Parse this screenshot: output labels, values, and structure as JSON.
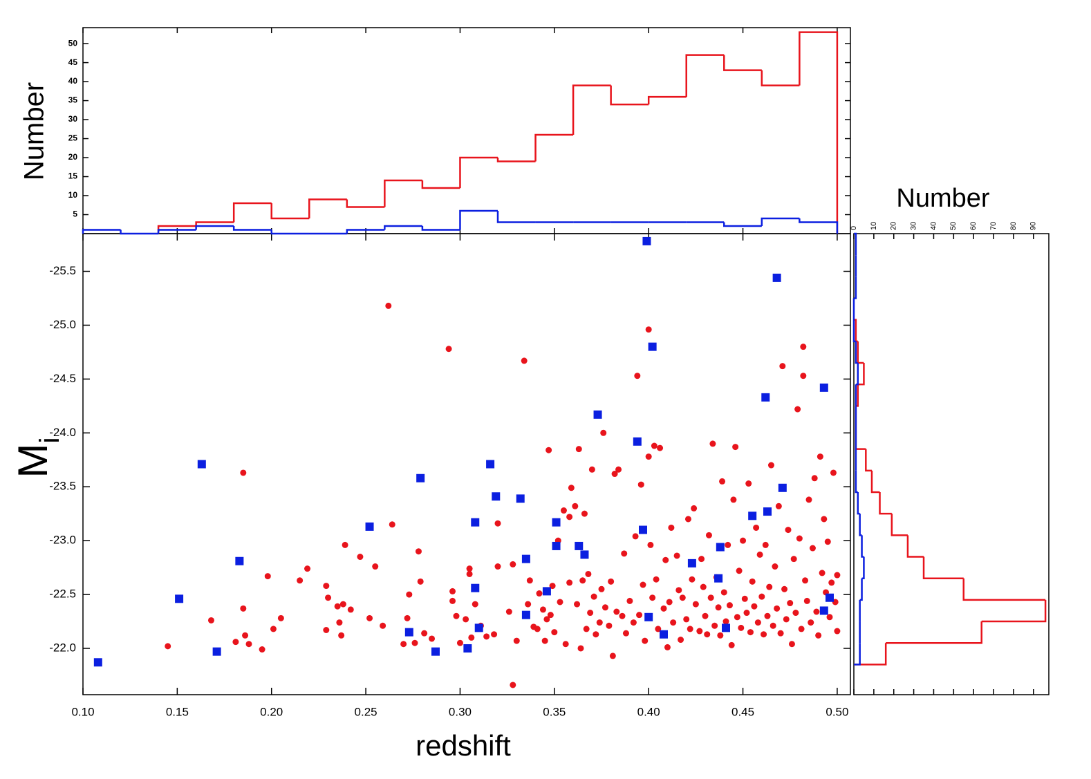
{
  "chart_data": [
    {
      "type": "scatter",
      "x_label": "redshift",
      "y_label": {
        "main": "M",
        "subscript": "i"
      },
      "xlim": [
        0.1,
        0.507
      ],
      "ylim": [
        -21.57,
        -25.85
      ],
      "xticks": [
        {
          "value": 0.1,
          "label": "0.10"
        },
        0.15,
        {
          "value": 0.2,
          "label": "0.20"
        },
        0.25,
        {
          "value": 0.3,
          "label": "0.30"
        },
        0.35,
        {
          "value": 0.4,
          "label": "0.40"
        },
        0.45,
        {
          "value": 0.5,
          "label": "0.50"
        }
      ],
      "yticks": [
        -25.5,
        {
          "value": -25,
          "label": "-25.0"
        },
        -24.5,
        {
          "value": -24,
          "label": "-24.0"
        },
        -23.5,
        {
          "value": -23,
          "label": "-23.0"
        },
        -22.5,
        {
          "value": -22,
          "label": "-22.0"
        }
      ],
      "series": [
        {
          "color": "#e8141c",
          "marker": "circle",
          "x": [
            0.145,
            0.168,
            0.185,
            0.181,
            0.185,
            0.186,
            0.188,
            0.195,
            0.198,
            0.201,
            0.205,
            0.215,
            0.219,
            0.229,
            0.23,
            0.229,
            0.235,
            0.236,
            0.237,
            0.238,
            0.239,
            0.242,
            0.247,
            0.252,
            0.255,
            0.259,
            0.262,
            0.264,
            0.27,
            0.272,
            0.273,
            0.276,
            0.278,
            0.279,
            0.281,
            0.285,
            0.294,
            0.296,
            0.296,
            0.298,
            0.3,
            0.303,
            0.305,
            0.305,
            0.306,
            0.308,
            0.311,
            0.314,
            0.318,
            0.32,
            0.32,
            0.326,
            0.328,
            0.328,
            0.33,
            0.334,
            0.336,
            0.337,
            0.339,
            0.341,
            0.342,
            0.344,
            0.345,
            0.346,
            0.347,
            0.348,
            0.349,
            0.35,
            0.352,
            0.353,
            0.355,
            0.356,
            0.358,
            0.358,
            0.359,
            0.361,
            0.362,
            0.363,
            0.364,
            0.365,
            0.366,
            0.367,
            0.368,
            0.369,
            0.37,
            0.371,
            0.372,
            0.374,
            0.375,
            0.376,
            0.377,
            0.379,
            0.38,
            0.381,
            0.382,
            0.383,
            0.384,
            0.386,
            0.387,
            0.388,
            0.39,
            0.392,
            0.393,
            0.394,
            0.395,
            0.396,
            0.397,
            0.398,
            0.4,
            0.4,
            0.401,
            0.402,
            0.403,
            0.404,
            0.405,
            0.406,
            0.408,
            0.409,
            0.41,
            0.411,
            0.412,
            0.413,
            0.415,
            0.416,
            0.417,
            0.418,
            0.42,
            0.421,
            0.422,
            0.423,
            0.424,
            0.425,
            0.427,
            0.428,
            0.429,
            0.43,
            0.431,
            0.432,
            0.433,
            0.434,
            0.435,
            0.436,
            0.437,
            0.438,
            0.439,
            0.44,
            0.441,
            0.442,
            0.443,
            0.444,
            0.445,
            0.446,
            0.447,
            0.448,
            0.449,
            0.45,
            0.451,
            0.452,
            0.453,
            0.454,
            0.455,
            0.456,
            0.457,
            0.458,
            0.459,
            0.46,
            0.461,
            0.462,
            0.463,
            0.464,
            0.465,
            0.466,
            0.467,
            0.468,
            0.469,
            0.47,
            0.471,
            0.472,
            0.473,
            0.474,
            0.475,
            0.476,
            0.477,
            0.478,
            0.479,
            0.48,
            0.481,
            0.482,
            0.482,
            0.483,
            0.484,
            0.485,
            0.486,
            0.487,
            0.488,
            0.489,
            0.49,
            0.491,
            0.492,
            0.493,
            0.494,
            0.495,
            0.496,
            0.497,
            0.498,
            0.499,
            0.5,
            0.5
          ],
          "y": [
            -22.02,
            -22.26,
            -23.63,
            -22.06,
            -22.37,
            -22.12,
            -22.04,
            -21.99,
            -22.67,
            -22.18,
            -22.28,
            -22.63,
            -22.74,
            -22.58,
            -22.47,
            -22.17,
            -22.39,
            -22.24,
            -22.12,
            -22.41,
            -22.96,
            -22.36,
            -22.85,
            -22.28,
            -22.76,
            -22.21,
            -25.18,
            -23.15,
            -22.04,
            -22.28,
            -22.5,
            -22.05,
            -22.9,
            -22.62,
            -22.14,
            -22.09,
            -24.78,
            -22.53,
            -22.44,
            -22.3,
            -22.05,
            -22.27,
            -22.69,
            -22.74,
            -22.1,
            -22.41,
            -22.21,
            -22.11,
            -22.13,
            -22.76,
            -23.16,
            -22.34,
            -21.66,
            -22.78,
            -22.07,
            -24.67,
            -22.41,
            -22.63,
            -22.2,
            -22.18,
            -22.51,
            -22.36,
            -22.07,
            -22.27,
            -23.84,
            -22.31,
            -22.58,
            -22.15,
            -23.0,
            -22.43,
            -23.28,
            -22.04,
            -22.61,
            -23.22,
            -23.49,
            -23.32,
            -22.41,
            -23.85,
            -22.0,
            -22.63,
            -23.25,
            -22.18,
            -22.69,
            -22.33,
            -23.66,
            -22.48,
            -22.13,
            -22.24,
            -22.55,
            -24.0,
            -22.38,
            -22.21,
            -22.62,
            -21.93,
            -23.62,
            -22.34,
            -23.66,
            -22.3,
            -22.88,
            -22.14,
            -22.44,
            -22.24,
            -23.04,
            -24.53,
            -22.31,
            -23.52,
            -22.59,
            -22.07,
            -23.78,
            -24.96,
            -22.96,
            -22.47,
            -23.88,
            -22.64,
            -22.18,
            -23.86,
            -22.37,
            -22.82,
            -22.01,
            -22.43,
            -23.12,
            -22.24,
            -22.86,
            -22.54,
            -22.08,
            -22.47,
            -22.27,
            -23.2,
            -22.18,
            -22.64,
            -23.3,
            -22.41,
            -22.16,
            -22.83,
            -22.57,
            -22.3,
            -22.13,
            -23.05,
            -22.47,
            -23.9,
            -22.21,
            -22.66,
            -22.38,
            -22.12,
            -23.55,
            -22.52,
            -22.25,
            -22.96,
            -22.4,
            -22.03,
            -23.38,
            -23.87,
            -22.29,
            -22.72,
            -22.19,
            -23.0,
            -22.46,
            -22.33,
            -23.53,
            -22.15,
            -22.62,
            -22.39,
            -23.12,
            -22.24,
            -22.87,
            -22.48,
            -22.13,
            -22.96,
            -22.3,
            -22.57,
            -23.7,
            -22.21,
            -22.76,
            -22.37,
            -23.32,
            -22.14,
            -24.62,
            -22.55,
            -22.27,
            -23.1,
            -22.42,
            -22.04,
            -22.83,
            -22.33,
            -24.22,
            -23.02,
            -22.18,
            -24.8,
            -24.53,
            -22.63,
            -22.44,
            -23.38,
            -22.24,
            -22.93,
            -23.58,
            -22.34,
            -22.12,
            -23.78,
            -22.7,
            -23.2,
            -22.52,
            -22.99,
            -22.29,
            -22.61,
            -23.63,
            -22.43,
            -22.68,
            -22.16
          ]
        },
        {
          "color": "#0b1fe0",
          "marker": "square",
          "x": [
            0.108,
            0.151,
            0.163,
            0.171,
            0.183,
            0.252,
            0.273,
            0.279,
            0.287,
            0.304,
            0.308,
            0.308,
            0.31,
            0.316,
            0.319,
            0.332,
            0.335,
            0.335,
            0.346,
            0.351,
            0.351,
            0.363,
            0.366,
            0.373,
            0.394,
            0.397,
            0.399,
            0.4,
            0.402,
            0.408,
            0.423,
            0.437,
            0.438,
            0.441,
            0.455,
            0.462,
            0.463,
            0.468,
            0.471,
            0.493,
            0.493,
            0.496
          ],
          "y": [
            -21.87,
            -22.46,
            -23.71,
            -21.97,
            -22.81,
            -23.13,
            -22.15,
            -23.58,
            -21.97,
            -22.0,
            -22.56,
            -23.17,
            -22.19,
            -23.71,
            -23.41,
            -23.39,
            -22.31,
            -22.83,
            -22.53,
            -23.17,
            -22.95,
            -22.95,
            -22.87,
            -24.17,
            -23.92,
            -23.1,
            -25.78,
            -22.29,
            -24.8,
            -22.13,
            -22.79,
            -22.65,
            -22.94,
            -22.19,
            -23.23,
            -24.33,
            -23.27,
            -25.44,
            -23.49,
            -24.42,
            -22.35,
            -22.47
          ]
        }
      ]
    },
    {
      "type": "histogram",
      "y_label": "Number",
      "xlim": [
        0.1,
        0.507
      ],
      "ylim": [
        0,
        54.2
      ],
      "yticks": [
        5,
        10,
        15,
        20,
        25,
        30,
        35,
        40,
        45,
        50
      ],
      "series": [
        {
          "color": "#e8141c",
          "bins": [
            0.14,
            0.16,
            0.18,
            0.2,
            0.22,
            0.24,
            0.26,
            0.28,
            0.3,
            0.32,
            0.34,
            0.36,
            0.38,
            0.4,
            0.42,
            0.44,
            0.46,
            0.48,
            0.5
          ],
          "values": [
            2,
            3,
            8,
            4,
            9,
            7,
            14,
            12,
            20,
            19,
            26,
            39,
            34,
            36,
            47,
            43,
            39,
            53
          ]
        },
        {
          "color": "#0b1fe0",
          "bins": [
            0.1,
            0.12,
            0.14,
            0.16,
            0.18,
            0.2,
            0.22,
            0.24,
            0.26,
            0.28,
            0.3,
            0.32,
            0.34,
            0.36,
            0.38,
            0.4,
            0.42,
            0.44,
            0.46,
            0.48,
            0.5
          ],
          "values": [
            1,
            0,
            1,
            2,
            1,
            0,
            0,
            1,
            2,
            1,
            6,
            3,
            3,
            3,
            3,
            3,
            3,
            2,
            4,
            3
          ]
        }
      ]
    },
    {
      "type": "histogram",
      "orientation": "horizontal",
      "x_label": "Number",
      "xlim": [
        0,
        97.7
      ],
      "ylim": [
        -21.57,
        -25.85
      ],
      "xticks": [
        0,
        10,
        20,
        30,
        40,
        50,
        60,
        70,
        80,
        90
      ],
      "series": [
        {
          "color": "#e8141c",
          "bins": [
            -21.85,
            -22.05,
            -22.25,
            -22.45,
            -22.65,
            -22.85,
            -23.05,
            -23.25,
            -23.45,
            -23.65,
            -23.85,
            -24.05,
            -24.25,
            -24.45,
            -24.65,
            -24.85,
            -25.05
          ],
          "values": [
            16,
            64,
            96,
            55,
            35,
            27,
            19,
            13,
            9,
            6,
            1,
            1,
            2,
            5,
            2,
            1
          ]
        },
        {
          "color": "#0b1fe0",
          "bins": [
            -21.85,
            -22.05,
            -22.25,
            -22.45,
            -22.65,
            -22.85,
            -23.05,
            -23.25,
            -23.45,
            -23.65,
            -23.85,
            -24.05,
            -24.25,
            -24.45,
            -24.65,
            -24.85,
            -25.05,
            -25.25,
            -25.45,
            -25.65,
            -25.85
          ],
          "values": [
            3,
            3,
            3,
            4,
            5,
            4,
            3,
            2,
            1,
            1,
            1,
            1,
            1,
            2,
            1,
            0,
            0,
            1,
            1,
            1
          ]
        }
      ]
    }
  ]
}
